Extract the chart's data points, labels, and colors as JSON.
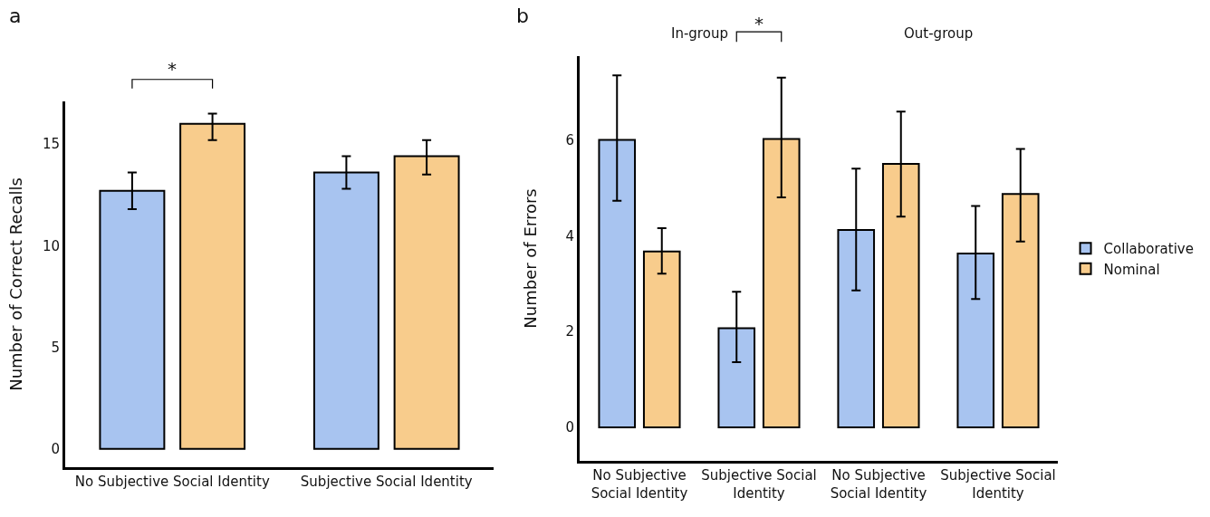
{
  "chart_data": [
    {
      "type": "bar",
      "title": "a",
      "ylabel": "Number of Correct Recalls",
      "categories": [
        "No Subjective Social Identity",
        "Subjective Social Identity"
      ],
      "series": [
        {
          "color": "#a8c4f0",
          "values": [
            12.7,
            13.6
          ],
          "errors": [
            [
              11.8,
              13.6
            ],
            [
              12.8,
              14.4
            ]
          ]
        },
        {
          "color": "#f8cc8c",
          "values": [
            16.0,
            14.4
          ],
          "errors": [
            [
              15.2,
              16.5
            ],
            [
              13.5,
              15.2
            ]
          ]
        }
      ],
      "ylim": [
        -0.9,
        17.1
      ],
      "yticks": [
        0,
        5,
        10,
        15
      ],
      "grid": false,
      "legend": false,
      "annotations": [
        "*"
      ]
    },
    {
      "type": "bar",
      "title": "b",
      "ylabel": "Number of Errors",
      "categories": [
        "No Subjective Social Identity",
        "Subjective Social Identity",
        "No Subjective Social Identity",
        "Subjective Social Identity"
      ],
      "series": [
        {
          "name": "Collaborative",
          "color": "#a8c4f0",
          "values": [
            6.0,
            2.07,
            4.12,
            3.63
          ],
          "errors": [
            [
              4.73,
              7.35
            ],
            [
              1.36,
              2.83
            ],
            [
              2.86,
              5.4
            ],
            [
              2.68,
              4.62
            ]
          ]
        },
        {
          "name": "Nominal",
          "color": "#f8cc8c",
          "values": [
            3.67,
            6.02,
            5.5,
            4.87
          ],
          "errors": [
            [
              3.21,
              4.16
            ],
            [
              4.8,
              7.3
            ],
            [
              4.4,
              6.59
            ],
            [
              3.88,
              5.81
            ]
          ]
        }
      ],
      "ylim": [
        -0.7,
        7.75
      ],
      "yticks": [
        0,
        2,
        4,
        6
      ],
      "grid": false,
      "legend": "right",
      "annotations": [
        "In-group",
        "Out-group",
        "*"
      ]
    }
  ]
}
